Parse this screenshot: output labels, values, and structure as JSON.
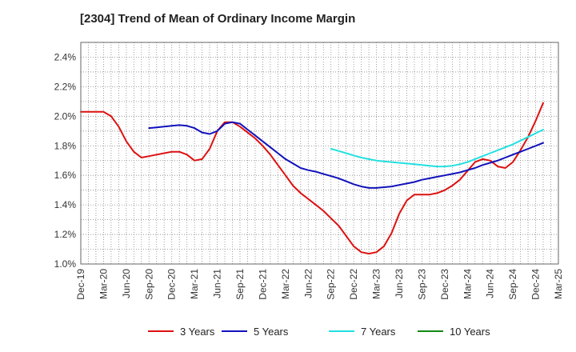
{
  "chart_data": {
    "type": "line",
    "title": "[2304]  Trend of Mean of Ordinary Income Margin",
    "xlabel": "",
    "ylabel": "",
    "x_tick_labels": [
      "Dec-19",
      "Mar-20",
      "Jun-20",
      "Sep-20",
      "Dec-20",
      "Mar-21",
      "Jun-21",
      "Sep-21",
      "Dec-21",
      "Mar-22",
      "Jun-22",
      "Sep-22",
      "Dec-22",
      "Mar-23",
      "Jun-23",
      "Sep-23",
      "Dec-23",
      "Mar-24",
      "Jun-24",
      "Sep-24",
      "Dec-24",
      "Mar-25"
    ],
    "y_ticks": [
      1.0,
      1.2,
      1.4,
      1.6,
      1.8,
      2.0,
      2.2,
      2.4
    ],
    "y_tick_labels": [
      "1.0%",
      "1.2%",
      "1.4%",
      "1.6%",
      "1.8%",
      "2.0%",
      "2.2%",
      "2.4%"
    ],
    "ylim": [
      1.0,
      2.5
    ],
    "x_unit": "month index (0 = Dec-19, 3 months per tick)",
    "grid": "dotted",
    "legend_position": "bottom",
    "series": [
      {
        "name": "3 Years",
        "color": "#dd1111",
        "points": [
          [
            0,
            2.03
          ],
          [
            1,
            2.03
          ],
          [
            2,
            2.03
          ],
          [
            3,
            2.03
          ],
          [
            4,
            2.0
          ],
          [
            5,
            1.93
          ],
          [
            6,
            1.83
          ],
          [
            7,
            1.76
          ],
          [
            8,
            1.72
          ],
          [
            9,
            1.73
          ],
          [
            10,
            1.74
          ],
          [
            11,
            1.75
          ],
          [
            12,
            1.76
          ],
          [
            13,
            1.76
          ],
          [
            14,
            1.74
          ],
          [
            15,
            1.7
          ],
          [
            16,
            1.71
          ],
          [
            17,
            1.78
          ],
          [
            18,
            1.9
          ],
          [
            19,
            1.96
          ],
          [
            20,
            1.96
          ],
          [
            21,
            1.93
          ],
          [
            22,
            1.89
          ],
          [
            23,
            1.85
          ],
          [
            24,
            1.8
          ],
          [
            25,
            1.74
          ],
          [
            26,
            1.67
          ],
          [
            27,
            1.6
          ],
          [
            28,
            1.53
          ],
          [
            29,
            1.48
          ],
          [
            30,
            1.44
          ],
          [
            31,
            1.4
          ],
          [
            32,
            1.36
          ],
          [
            33,
            1.31
          ],
          [
            34,
            1.26
          ],
          [
            35,
            1.19
          ],
          [
            36,
            1.12
          ],
          [
            37,
            1.08
          ],
          [
            38,
            1.07
          ],
          [
            39,
            1.08
          ],
          [
            40,
            1.12
          ],
          [
            41,
            1.21
          ],
          [
            42,
            1.34
          ],
          [
            43,
            1.43
          ],
          [
            44,
            1.47
          ],
          [
            45,
            1.47
          ],
          [
            46,
            1.47
          ],
          [
            47,
            1.48
          ],
          [
            48,
            1.5
          ],
          [
            49,
            1.53
          ],
          [
            50,
            1.57
          ],
          [
            51,
            1.63
          ],
          [
            52,
            1.69
          ],
          [
            53,
            1.71
          ],
          [
            54,
            1.7
          ],
          [
            55,
            1.66
          ],
          [
            56,
            1.65
          ],
          [
            57,
            1.69
          ],
          [
            58,
            1.77
          ],
          [
            59,
            1.86
          ],
          [
            60,
            1.97
          ],
          [
            61,
            2.09
          ]
        ]
      },
      {
        "name": "5 Years",
        "color": "#1111bb",
        "points": [
          [
            9,
            1.92
          ],
          [
            10,
            1.925
          ],
          [
            11,
            1.93
          ],
          [
            12,
            1.935
          ],
          [
            13,
            1.94
          ],
          [
            14,
            1.935
          ],
          [
            15,
            1.92
          ],
          [
            16,
            1.89
          ],
          [
            17,
            1.88
          ],
          [
            18,
            1.9
          ],
          [
            19,
            1.95
          ],
          [
            20,
            1.96
          ],
          [
            21,
            1.95
          ],
          [
            22,
            1.91
          ],
          [
            23,
            1.87
          ],
          [
            24,
            1.83
          ],
          [
            25,
            1.79
          ],
          [
            26,
            1.75
          ],
          [
            27,
            1.71
          ],
          [
            28,
            1.68
          ],
          [
            29,
            1.65
          ],
          [
            30,
            1.635
          ],
          [
            31,
            1.625
          ],
          [
            32,
            1.61
          ],
          [
            33,
            1.595
          ],
          [
            34,
            1.58
          ],
          [
            35,
            1.56
          ],
          [
            36,
            1.54
          ],
          [
            37,
            1.525
          ],
          [
            38,
            1.515
          ],
          [
            39,
            1.515
          ],
          [
            40,
            1.52
          ],
          [
            41,
            1.525
          ],
          [
            42,
            1.535
          ],
          [
            43,
            1.545
          ],
          [
            44,
            1.555
          ],
          [
            45,
            1.57
          ],
          [
            46,
            1.58
          ],
          [
            47,
            1.59
          ],
          [
            48,
            1.6
          ],
          [
            49,
            1.61
          ],
          [
            50,
            1.62
          ],
          [
            51,
            1.635
          ],
          [
            52,
            1.65
          ],
          [
            53,
            1.67
          ],
          [
            54,
            1.685
          ],
          [
            55,
            1.7
          ],
          [
            56,
            1.72
          ],
          [
            57,
            1.74
          ],
          [
            58,
            1.76
          ],
          [
            59,
            1.78
          ],
          [
            60,
            1.8
          ],
          [
            61,
            1.82
          ]
        ]
      },
      {
        "name": "7 Years",
        "color": "#22e0e0",
        "points": [
          [
            33,
            1.78
          ],
          [
            34,
            1.765
          ],
          [
            35,
            1.75
          ],
          [
            36,
            1.735
          ],
          [
            37,
            1.72
          ],
          [
            38,
            1.71
          ],
          [
            39,
            1.7
          ],
          [
            40,
            1.695
          ],
          [
            41,
            1.69
          ],
          [
            42,
            1.685
          ],
          [
            43,
            1.68
          ],
          [
            44,
            1.675
          ],
          [
            45,
            1.67
          ],
          [
            46,
            1.665
          ],
          [
            47,
            1.66
          ],
          [
            48,
            1.66
          ],
          [
            49,
            1.665
          ],
          [
            50,
            1.675
          ],
          [
            51,
            1.69
          ],
          [
            52,
            1.71
          ],
          [
            53,
            1.73
          ],
          [
            54,
            1.75
          ],
          [
            55,
            1.77
          ],
          [
            56,
            1.79
          ],
          [
            57,
            1.81
          ],
          [
            58,
            1.835
          ],
          [
            59,
            1.86
          ],
          [
            60,
            1.885
          ],
          [
            61,
            1.91
          ]
        ]
      },
      {
        "name": "10 Years",
        "color": "#118811",
        "points": []
      }
    ]
  }
}
